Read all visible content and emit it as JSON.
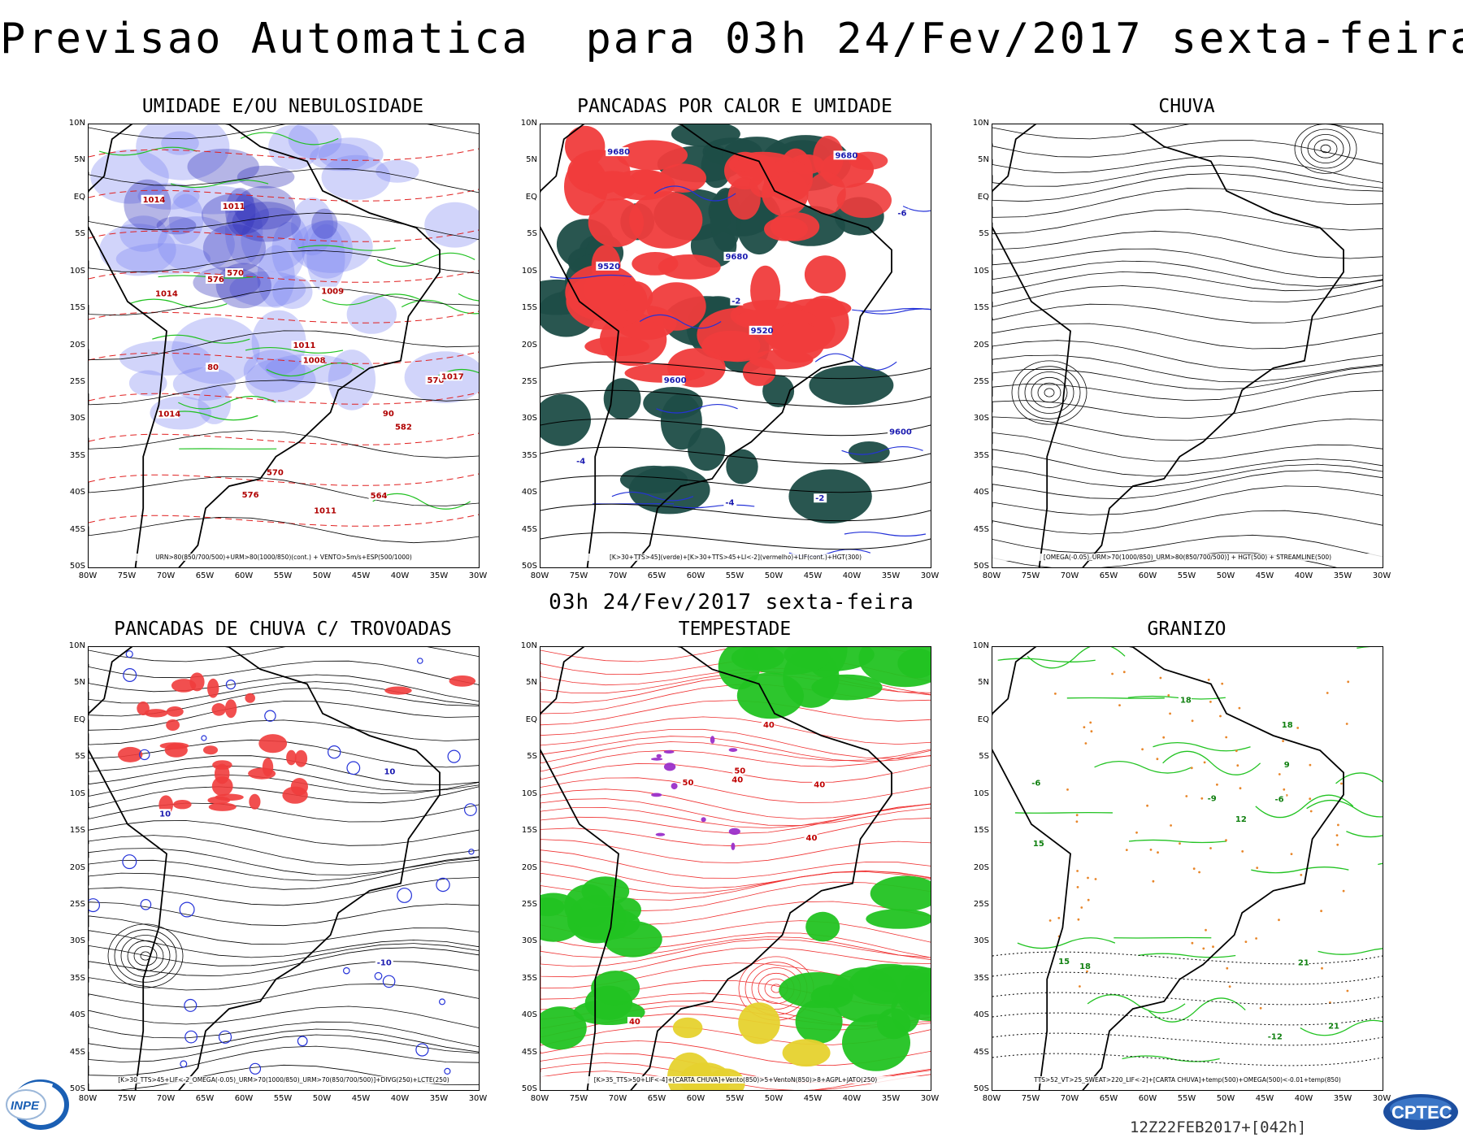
{
  "header": {
    "title": "Previsao Automatica  para 03h 24/Fev/2017 sexta-feira",
    "subtitle": "03h 24/Fev/2017 sexta-feira"
  },
  "axes": {
    "lat_labels": [
      "10N",
      "5N",
      "EQ",
      "5S",
      "10S",
      "15S",
      "20S",
      "25S",
      "30S",
      "35S",
      "40S",
      "45S",
      "50S"
    ],
    "lon_labels": [
      "80W",
      "75W",
      "70W",
      "65W",
      "60W",
      "55W",
      "50W",
      "45W",
      "40W",
      "35W",
      "30W"
    ]
  },
  "panels": [
    {
      "title": "UMIDADE E/OU NEBULOSIDADE",
      "caption": "URN>80(850/700/500)+URM>80(1000/850)(cont.) + VENTO>5m/s+ESP(500/1000)",
      "contour_labels": [
        "1011",
        "576",
        "1011",
        "576",
        "90",
        "80",
        "1014",
        "1017",
        "570",
        "1008",
        "1014",
        "582",
        "1011",
        "1009",
        "1014",
        "576",
        "564",
        "570"
      ],
      "colors": {
        "cloud": "#7b84f0",
        "humid": "#2a2ab8",
        "contour": "#1fc11f",
        "thickness": "#e02020",
        "pressure": "#000000"
      }
    },
    {
      "title": "PANCADAS POR CALOR E UMIDADE",
      "caption": "[K>30+TTS>45](verde)+[K>30+TTS>45+LI<-2](vermelho)+LIF(cont.)+HGT(300)",
      "contour_labels": [
        "-2",
        "-4",
        "-2",
        "-4",
        "-6",
        "9680",
        "9680",
        "9680",
        "9600",
        "9520",
        "9600",
        "9520"
      ],
      "colors": {
        "green": "#1e4d47",
        "red": "#f03c3c",
        "lif": "#2432d8"
      }
    },
    {
      "title": "CHUVA",
      "caption": "[OMEGA(-0.05)_URM>70(1000/850)_URM>80(850/700/500)] + HGT(500) + STREAMLINE(500)",
      "contour_labels": [],
      "colors": {
        "stream": "#000000"
      }
    },
    {
      "title": "PANCADAS DE CHUVA C/ TROVOADAS",
      "caption": "[K>30_TTS>45+LIF<-2_OMEGA(-0.05)_URM>70(1000/850)_URM>70(850/700/500)]+DIVG(250)+LCTE(250)",
      "contour_labels": [
        "-10",
        "10",
        "10"
      ],
      "colors": {
        "red": "#f03c3c",
        "blue": "#2432d8",
        "stream": "#000000"
      }
    },
    {
      "title": "TEMPESTADE",
      "caption": "[K>35_TTS>50+LIF<-4]+[CARTA CHUVA]+Vento(850)>5+VentoN(850)>8+AGPL+JATO(250)",
      "contour_labels": [
        "40",
        "50",
        "40",
        "40",
        "40",
        "50",
        "40"
      ],
      "colors": {
        "jet": "#22c322",
        "yellow": "#e6d22e",
        "purple": "#9b2fc9",
        "stream": "#ef3030"
      }
    },
    {
      "title": "GRANIZO",
      "caption": "TTS>52_VT>25_SWEAT>220_LIF<-2]+[CARTA CHUVA]+temp(500)+OMEGA(500)<-0.01+temp(850)",
      "contour_labels": [
        "18",
        "18",
        "15",
        "21",
        "-6",
        "-6",
        "12",
        "9",
        "15",
        "-9",
        "-12",
        "18",
        "21"
      ],
      "colors": {
        "temp": "#22c322",
        "omega": "#e8862a",
        "dotted": "#000000"
      }
    }
  ],
  "footer": {
    "run_stamp": "12Z22FEB2017+[042h]",
    "logo_left": "INPE",
    "logo_right": "CPTEC"
  }
}
